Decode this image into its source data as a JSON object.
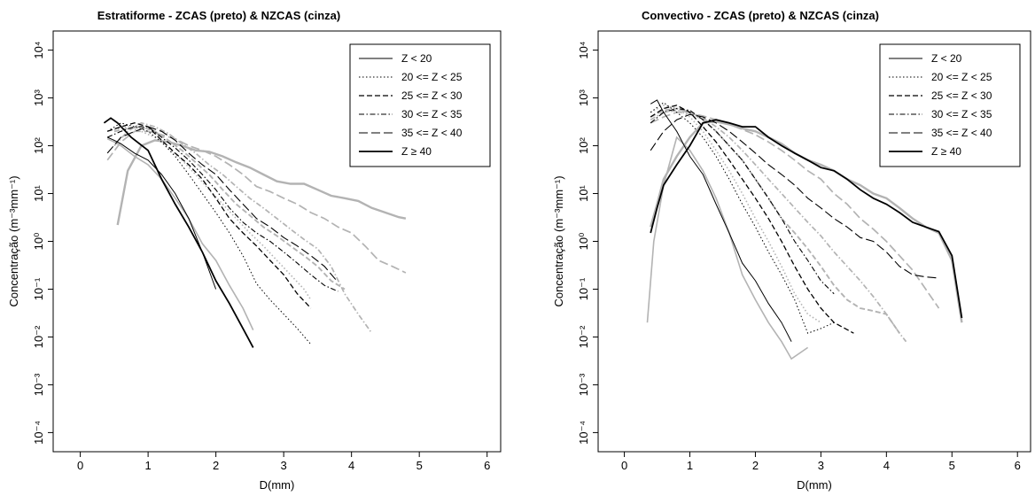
{
  "chart_data": [
    {
      "type": "line",
      "title": "Estratiforme - ZCAS (preto) & NZCAS (cinza)",
      "xlabel": "D(mm)",
      "ylabel": "Concentração (m⁻³mm⁻¹)",
      "xlim": [
        0,
        6
      ],
      "ylim": [
        0.0001,
        10000
      ],
      "yscale": "log",
      "x_ticks": [
        "0",
        "1",
        "2",
        "3",
        "4",
        "5",
        "6"
      ],
      "y_ticks": [
        "10⁻⁴",
        "10⁻³",
        "10⁻²",
        "10⁻¹",
        "10⁰",
        "10¹",
        "10²",
        "10³",
        "10⁴"
      ],
      "legend_position": "top-right",
      "legend": [
        "Z < 20",
        "20 <= Z  < 25",
        "25 <= Z  < 30",
        "30 <= Z  < 35",
        "35 <= Z  < 40",
        "Z ≥ 40"
      ],
      "series": [
        {
          "group": "ZCAS",
          "class": 0,
          "color": "#000000",
          "x": [
            0.4,
            0.5,
            0.6,
            0.8,
            1.0,
            1.2,
            1.4,
            1.6,
            1.8,
            2.0
          ],
          "y": [
            150,
            130,
            110,
            70,
            50,
            25,
            10,
            3,
            0.6,
            0.1
          ]
        },
        {
          "group": "ZCAS",
          "class": 1,
          "color": "#000000",
          "x": [
            0.4,
            0.6,
            0.8,
            1.0,
            1.2,
            1.4,
            1.6,
            1.8,
            2.0,
            2.2,
            2.4,
            2.6,
            2.8,
            3.0,
            3.2,
            3.4
          ],
          "y": [
            200,
            300,
            250,
            200,
            120,
            60,
            25,
            10,
            4,
            1.5,
            0.5,
            0.13,
            0.06,
            0.03,
            0.015,
            0.007
          ]
        },
        {
          "group": "ZCAS",
          "class": 2,
          "color": "#000000",
          "x": [
            0.4,
            0.6,
            0.8,
            1.0,
            1.2,
            1.4,
            1.6,
            1.8,
            2.0,
            2.2,
            2.4,
            2.6,
            2.8,
            3.0,
            3.2,
            3.4
          ],
          "y": [
            200,
            250,
            300,
            250,
            130,
            70,
            40,
            20,
            8,
            3,
            1.5,
            0.8,
            0.4,
            0.2,
            0.08,
            0.04
          ]
        },
        {
          "group": "ZCAS",
          "class": 3,
          "color": "#000000",
          "x": [
            0.4,
            0.6,
            0.8,
            1.0,
            1.2,
            1.4,
            1.6,
            1.8,
            2.0,
            2.2,
            2.4,
            2.6,
            2.8,
            3.0,
            3.2,
            3.4,
            3.6,
            3.8
          ],
          "y": [
            150,
            200,
            250,
            250,
            150,
            90,
            50,
            25,
            12,
            5,
            2.5,
            1.5,
            1,
            0.6,
            0.35,
            0.2,
            0.12,
            0.09
          ]
        },
        {
          "group": "ZCAS",
          "class": 4,
          "color": "#000000",
          "x": [
            0.4,
            0.6,
            0.8,
            1.0,
            1.2,
            1.4,
            1.6,
            1.8,
            2.0,
            2.2,
            2.4,
            2.6,
            2.8,
            3.0,
            3.2,
            3.4,
            3.6,
            3.8
          ],
          "y": [
            70,
            150,
            200,
            250,
            200,
            130,
            70,
            40,
            25,
            12,
            6,
            3,
            2,
            1.2,
            0.8,
            0.5,
            0.3,
            0.14
          ]
        },
        {
          "group": "ZCAS",
          "class": 5,
          "color": "#000000",
          "x": [
            0.35,
            0.45,
            0.55,
            0.75,
            1.0,
            1.2,
            1.4,
            1.6,
            1.8,
            2.0,
            2.2,
            2.4,
            2.55
          ],
          "y": [
            300,
            380,
            300,
            150,
            80,
            20,
            6,
            2,
            0.6,
            0.15,
            0.05,
            0.015,
            0.006
          ]
        },
        {
          "group": "NZCAS",
          "class": 0,
          "color": "#b3b3b3",
          "x": [
            0.4,
            0.5,
            0.6,
            0.8,
            1.0,
            1.2,
            1.4,
            1.6,
            1.8,
            2.0,
            2.2,
            2.4,
            2.55
          ],
          "y": [
            140,
            120,
            100,
            60,
            40,
            20,
            8,
            3,
            0.9,
            0.4,
            0.12,
            0.04,
            0.014
          ]
        },
        {
          "group": "NZCAS",
          "class": 1,
          "color": "#b3b3b3",
          "x": [
            0.5,
            0.7,
            0.9,
            1.1,
            1.3,
            1.5,
            1.7,
            1.9,
            2.1,
            2.3,
            2.5,
            2.7,
            2.9,
            3.1,
            3.3,
            3.4
          ],
          "y": [
            220,
            250,
            200,
            150,
            90,
            50,
            25,
            12,
            6,
            3,
            1.5,
            0.8,
            0.4,
            0.2,
            0.1,
            0.06
          ]
        },
        {
          "group": "NZCAS",
          "class": 2,
          "color": "#b3b3b3",
          "x": [
            0.5,
            0.7,
            0.9,
            1.1,
            1.3,
            1.5,
            1.7,
            1.9,
            2.1,
            2.3,
            2.5,
            2.7,
            2.9,
            3.1,
            3.3,
            3.5,
            3.7,
            3.9
          ],
          "y": [
            200,
            230,
            250,
            200,
            130,
            80,
            45,
            25,
            12,
            6,
            3.5,
            2,
            1.3,
            0.8,
            0.5,
            0.3,
            0.15,
            0.1
          ]
        },
        {
          "group": "NZCAS",
          "class": 3,
          "color": "#b3b3b3",
          "x": [
            0.5,
            0.7,
            0.9,
            1.1,
            1.3,
            1.5,
            1.7,
            1.9,
            2.1,
            2.3,
            2.5,
            2.7,
            2.9,
            3.1,
            3.3,
            3.5,
            3.7,
            3.9,
            4.1,
            4.3
          ],
          "y": [
            100,
            200,
            300,
            250,
            180,
            110,
            70,
            40,
            25,
            14,
            8,
            5,
            3,
            1.8,
            1.1,
            0.7,
            0.3,
            0.08,
            0.03,
            0.012
          ]
        },
        {
          "group": "NZCAS",
          "class": 4,
          "color": "#b3b3b3",
          "x": [
            0.4,
            0.6,
            0.8,
            1.0,
            1.2,
            1.4,
            1.6,
            1.8,
            2.0,
            2.2,
            2.4,
            2.6,
            2.8,
            3.0,
            3.2,
            3.4,
            3.6,
            3.8,
            4.0,
            4.2,
            4.4,
            4.6,
            4.8
          ],
          "y": [
            50,
            120,
            200,
            200,
            170,
            140,
            100,
            80,
            60,
            40,
            25,
            14,
            11,
            8,
            6,
            4,
            3,
            2,
            1.5,
            0.8,
            0.4,
            0.3,
            0.22
          ]
        },
        {
          "group": "NZCAS",
          "class": 5,
          "color": "#b3b3b3",
          "x": [
            0.55,
            0.7,
            0.9,
            1.1,
            1.3,
            1.5,
            1.7,
            1.9,
            2.1,
            2.3,
            2.5,
            2.7,
            2.9,
            3.1,
            3.3,
            3.5,
            3.7,
            3.9,
            4.1,
            4.3,
            4.5,
            4.7,
            4.8
          ],
          "y": [
            2.2,
            30,
            100,
            130,
            120,
            100,
            80,
            75,
            60,
            45,
            35,
            25,
            18,
            16,
            16,
            12,
            9,
            8,
            7,
            5,
            4,
            3.2,
            3
          ]
        }
      ]
    },
    {
      "type": "line",
      "title": "Convectivo - ZCAS (preto) & NZCAS (cinza)",
      "xlabel": "D(mm)",
      "ylabel": "Concentração (m⁻³mm⁻¹)",
      "xlim": [
        0,
        6
      ],
      "ylim": [
        0.0001,
        10000
      ],
      "yscale": "log",
      "x_ticks": [
        "0",
        "1",
        "2",
        "3",
        "4",
        "5",
        "6"
      ],
      "y_ticks": [
        "10⁻⁴",
        "10⁻³",
        "10⁻²",
        "10⁻¹",
        "10⁰",
        "10¹",
        "10²",
        "10³",
        "10⁴"
      ],
      "legend_position": "top-right",
      "legend": [
        "Z < 20",
        "20 <= Z  < 25",
        "25 <= Z  < 30",
        "30 <= Z  < 35",
        "35 <= Z  < 40",
        "Z ≥ 40"
      ],
      "series": [
        {
          "group": "ZCAS",
          "class": 0,
          "color": "#000000",
          "x": [
            0.4,
            0.5,
            0.6,
            0.8,
            1.0,
            1.2,
            1.4,
            1.6,
            1.8,
            2.0,
            2.2,
            2.4,
            2.55
          ],
          "y": [
            750,
            900,
            500,
            200,
            60,
            25,
            6,
            1.5,
            0.35,
            0.15,
            0.05,
            0.02,
            0.008
          ]
        },
        {
          "group": "ZCAS",
          "class": 1,
          "color": "#000000",
          "x": [
            0.4,
            0.6,
            0.8,
            1.0,
            1.2,
            1.4,
            1.6,
            1.8,
            2.0,
            2.2,
            2.4,
            2.6,
            2.8,
            3.0,
            3.2
          ],
          "y": [
            500,
            800,
            500,
            300,
            150,
            60,
            20,
            6,
            2,
            0.6,
            0.2,
            0.06,
            0.012,
            0.015,
            0.02
          ]
        },
        {
          "group": "ZCAS",
          "class": 2,
          "color": "#000000",
          "x": [
            0.4,
            0.6,
            0.8,
            1.0,
            1.2,
            1.4,
            1.6,
            1.8,
            2.0,
            2.2,
            2.4,
            2.6,
            2.8,
            3.0,
            3.2,
            3.5
          ],
          "y": [
            400,
            600,
            700,
            500,
            250,
            120,
            50,
            20,
            8,
            3,
            1,
            0.3,
            0.1,
            0.04,
            0.02,
            0.012
          ]
        },
        {
          "group": "ZCAS",
          "class": 3,
          "color": "#000000",
          "x": [
            0.4,
            0.6,
            0.8,
            1.0,
            1.2,
            1.4,
            1.6,
            1.8,
            2.0,
            2.2,
            2.4,
            2.6,
            2.8,
            3.0,
            3.2
          ],
          "y": [
            300,
            500,
            600,
            550,
            350,
            200,
            100,
            50,
            20,
            8,
            3,
            1,
            0.4,
            0.15,
            0.08
          ]
        },
        {
          "group": "ZCAS",
          "class": 4,
          "color": "#000000",
          "x": [
            0.4,
            0.6,
            0.8,
            1.0,
            1.2,
            1.4,
            1.6,
            1.8,
            2.0,
            2.2,
            2.4,
            2.6,
            2.8,
            3.0,
            3.2,
            3.4,
            3.6,
            3.8,
            4.0,
            4.2,
            4.4,
            4.6,
            4.8
          ],
          "y": [
            80,
            200,
            350,
            450,
            400,
            300,
            200,
            120,
            70,
            40,
            25,
            15,
            8,
            5,
            3,
            2,
            1.2,
            1,
            0.6,
            0.3,
            0.2,
            0.18,
            0.17
          ]
        },
        {
          "group": "ZCAS",
          "class": 5,
          "color": "#000000",
          "x": [
            0.4,
            0.5,
            0.6,
            0.8,
            1.0,
            1.2,
            1.4,
            1.6,
            1.8,
            2.0,
            2.2,
            2.4,
            2.6,
            2.8,
            3.0,
            3.2,
            3.4,
            3.6,
            3.8,
            4.0,
            4.2,
            4.4,
            4.6,
            4.8,
            5.0,
            5.15
          ],
          "y": [
            1.5,
            5,
            15,
            40,
            100,
            300,
            350,
            300,
            250,
            250,
            150,
            100,
            70,
            50,
            35,
            30,
            20,
            12,
            8,
            6,
            4,
            2.5,
            2,
            1.6,
            0.5,
            0.025
          ]
        },
        {
          "group": "NZCAS",
          "class": 0,
          "color": "#b3b3b3",
          "x": [
            0.35,
            0.45,
            0.6,
            0.8,
            1.0,
            1.2,
            1.4,
            1.6,
            1.8,
            2.0,
            2.2,
            2.4,
            2.55,
            2.8
          ],
          "y": [
            0.02,
            1,
            15,
            150,
            80,
            30,
            8,
            1.5,
            0.2,
            0.06,
            0.02,
            0.008,
            0.0035,
            0.006
          ]
        },
        {
          "group": "NZCAS",
          "class": 1,
          "color": "#b3b3b3",
          "x": [
            0.4,
            0.6,
            0.8,
            1.0,
            1.2,
            1.4,
            1.6,
            1.8,
            2.0,
            2.2,
            2.4,
            2.6,
            2.8,
            3.0
          ],
          "y": [
            500,
            700,
            600,
            400,
            200,
            80,
            30,
            10,
            3,
            1,
            0.3,
            0.08,
            0.03,
            0.02
          ]
        },
        {
          "group": "NZCAS",
          "class": 2,
          "color": "#b3b3b3",
          "x": [
            0.4,
            0.6,
            0.8,
            1.0,
            1.2,
            1.4,
            1.6,
            1.8,
            2.0,
            2.2,
            2.4,
            2.6,
            2.8,
            3.0,
            3.2,
            3.4,
            3.6,
            3.8,
            4.0,
            4.2
          ],
          "y": [
            400,
            550,
            600,
            500,
            350,
            200,
            100,
            50,
            20,
            8,
            3,
            1.5,
            0.7,
            0.3,
            0.12,
            0.06,
            0.04,
            0.035,
            0.03,
            0.012
          ]
        },
        {
          "group": "NZCAS",
          "class": 3,
          "color": "#b3b3b3",
          "x": [
            0.4,
            0.6,
            0.8,
            1.0,
            1.2,
            1.4,
            1.6,
            1.8,
            2.0,
            2.2,
            2.4,
            2.6,
            2.8,
            3.0,
            3.2,
            3.4,
            3.6,
            3.8,
            4.0,
            4.2,
            4.3
          ],
          "y": [
            350,
            500,
            550,
            500,
            380,
            250,
            150,
            80,
            40,
            20,
            10,
            5,
            2.5,
            1.3,
            0.6,
            0.3,
            0.15,
            0.07,
            0.03,
            0.012,
            0.008
          ]
        },
        {
          "group": "NZCAS",
          "class": 4,
          "color": "#b3b3b3",
          "x": [
            0.4,
            0.6,
            0.8,
            1.0,
            1.2,
            1.4,
            1.6,
            1.8,
            2.0,
            2.2,
            2.4,
            2.6,
            2.8,
            3.0,
            3.2,
            3.4,
            3.6,
            3.8,
            4.0,
            4.2,
            4.4,
            4.6,
            4.8
          ],
          "y": [
            300,
            400,
            500,
            480,
            420,
            350,
            280,
            220,
            170,
            120,
            80,
            50,
            30,
            20,
            10,
            6,
            3,
            1.8,
            1,
            0.5,
            0.25,
            0.1,
            0.04
          ]
        },
        {
          "group": "NZCAS",
          "class": 5,
          "color": "#b3b3b3",
          "x": [
            0.4,
            0.5,
            0.6,
            0.8,
            1.0,
            1.2,
            1.4,
            1.6,
            1.8,
            2.0,
            2.2,
            2.4,
            2.6,
            2.8,
            3.0,
            3.2,
            3.4,
            3.6,
            3.8,
            4.0,
            4.2,
            4.4,
            4.6,
            4.8,
            5.0,
            5.15
          ],
          "y": [
            2,
            6,
            20,
            60,
            150,
            300,
            320,
            280,
            230,
            200,
            150,
            110,
            70,
            50,
            40,
            30,
            20,
            15,
            10,
            8,
            5,
            3,
            2,
            1.5,
            0.4,
            0.02
          ]
        }
      ]
    }
  ]
}
